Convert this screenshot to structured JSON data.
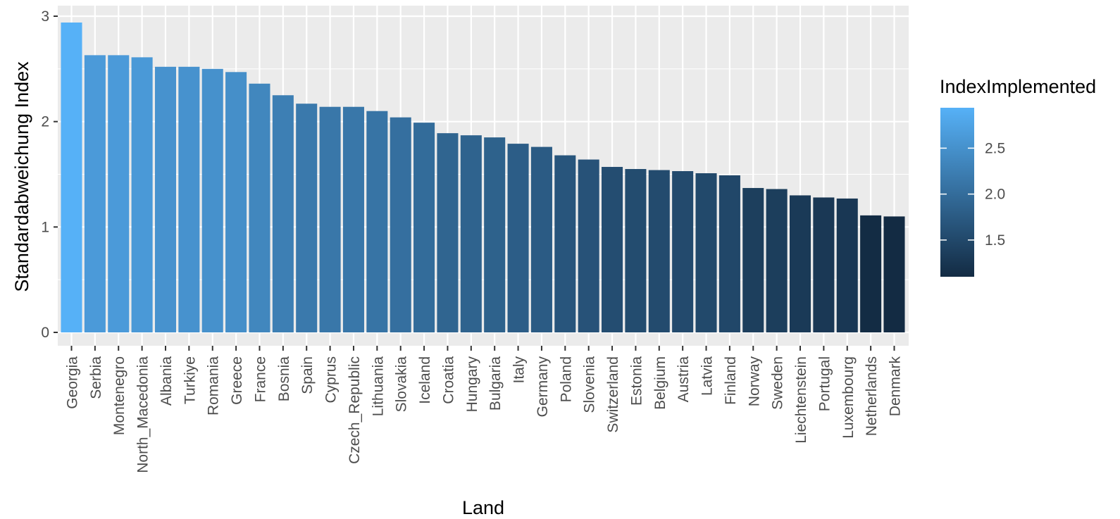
{
  "chart_data": {
    "type": "bar",
    "title": "",
    "xlabel": "Land",
    "ylabel": "Standardabweichung Index",
    "ylim": [
      0,
      3
    ],
    "yticks": [
      "0",
      "1",
      "2",
      "3"
    ],
    "grid": true,
    "legend_position": "right",
    "categories": [
      "Georgia",
      "Serbia",
      "Montenegro",
      "North_Macedonia",
      "Albania",
      "Turkiye",
      "Romania",
      "Greece",
      "France",
      "Bosnia",
      "Spain",
      "Cyprus",
      "Czech_Republic",
      "Lithuania",
      "Slovakia",
      "Iceland",
      "Croatia",
      "Hungary",
      "Bulgaria",
      "Italy",
      "Germany",
      "Poland",
      "Slovenia",
      "Switzerland",
      "Estonia",
      "Belgium",
      "Austria",
      "Latvia",
      "Finland",
      "Norway",
      "Sweden",
      "Liechtenstein",
      "Portugal",
      "Luxembourg",
      "Netherlands",
      "Denmark"
    ],
    "values": [
      2.94,
      2.63,
      2.63,
      2.61,
      2.52,
      2.52,
      2.5,
      2.47,
      2.36,
      2.25,
      2.17,
      2.14,
      2.14,
      2.1,
      2.04,
      1.99,
      1.89,
      1.87,
      1.85,
      1.79,
      1.76,
      1.68,
      1.64,
      1.57,
      1.55,
      1.54,
      1.53,
      1.51,
      1.49,
      1.37,
      1.36,
      1.3,
      1.28,
      1.27,
      1.11,
      1.1
    ],
    "legend": {
      "title": "IndexImplemented",
      "type": "colorbar",
      "breaks": [
        "2.5",
        "2.0",
        "1.5"
      ],
      "break_values": [
        2.5,
        2.0,
        1.5
      ],
      "range": [
        1.1,
        2.94
      ],
      "color_low": "#132B43",
      "color_high": "#56B1F7"
    },
    "colors": {
      "panel_background": "#EBEBEB",
      "grid_major": "#FFFFFF",
      "tick_color": "#333333"
    }
  }
}
